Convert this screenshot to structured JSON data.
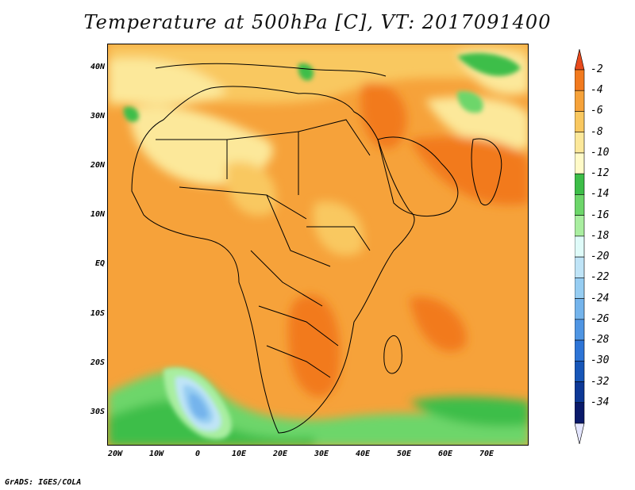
{
  "title": "Temperature at 500hPa [C], VT: 2017091400",
  "footer": "GrADS: IGES/COLA",
  "y_axis_labels": [
    "40N",
    "30N",
    "20N",
    "10N",
    "EQ",
    "10S",
    "20S",
    "30S"
  ],
  "x_axis_labels": [
    "20W",
    "10W",
    "0",
    "10E",
    "20E",
    "30E",
    "40E",
    "50E",
    "60E",
    "70E"
  ],
  "colorbar": {
    "labels": [
      "-2",
      "-4",
      "-6",
      "-8",
      "-10",
      "-12",
      "-14",
      "-16",
      "-18",
      "-20",
      "-22",
      "-24",
      "-26",
      "-28",
      "-30",
      "-32",
      "-34"
    ],
    "colors": [
      "#e84a1c",
      "#f27a1e",
      "#f6a23a",
      "#f9c860",
      "#fce89a",
      "#fffac8",
      "#3dbe48",
      "#6dd66a",
      "#a9eea0",
      "#dffbf9",
      "#bfe4f7",
      "#96cdf2",
      "#74b4ec",
      "#4f95e3",
      "#2d74d6",
      "#1756b8",
      "#0d3896",
      "#0a1a6a",
      "#e4e6ff"
    ]
  },
  "map": {
    "region": "Africa and Middle East",
    "variable": "Temperature at 500hPa",
    "units": "C"
  }
}
